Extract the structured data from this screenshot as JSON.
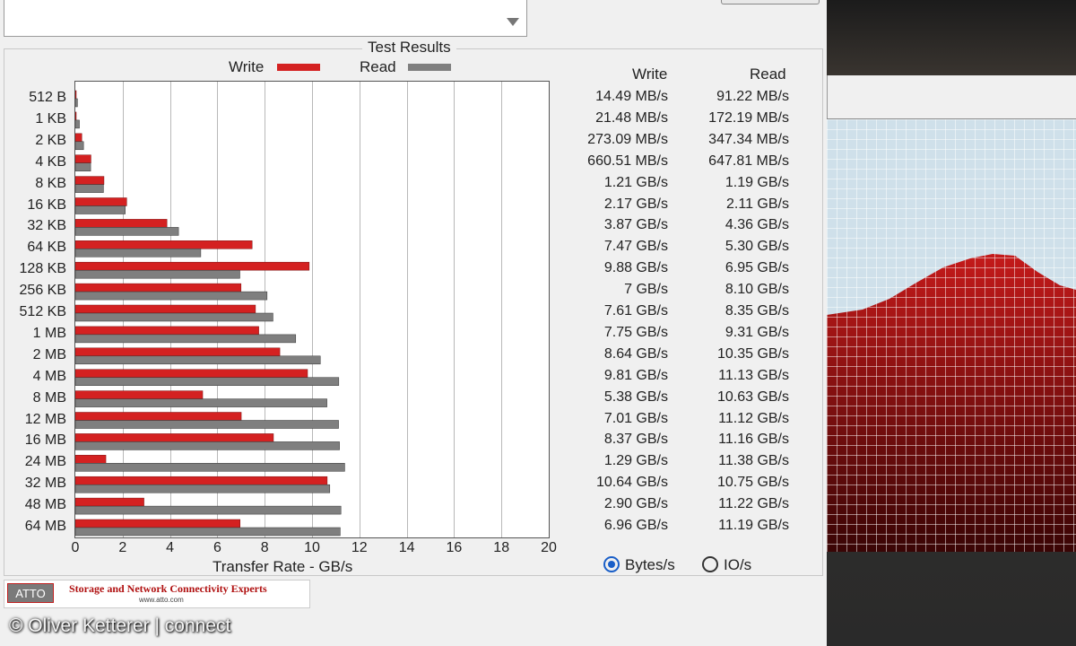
{
  "group_title": "Test Results",
  "legend": {
    "write_label": "Write",
    "read_label": "Read"
  },
  "colors": {
    "write": "#d42121",
    "read": "#7f7f7f"
  },
  "columns": {
    "write": "Write",
    "read": "Read"
  },
  "chart_data": {
    "type": "bar",
    "orientation": "horizontal",
    "title": "Test Results",
    "xlabel": "Transfer Rate - GB/s",
    "ylabel": "",
    "xlim": [
      0,
      20
    ],
    "xticks": [
      "0",
      "2",
      "4",
      "6",
      "8",
      "10",
      "12",
      "14",
      "16",
      "18",
      "20"
    ],
    "grid": true,
    "legend_position": "top",
    "categories": [
      "512 B",
      "1 KB",
      "2 KB",
      "4 KB",
      "8 KB",
      "16 KB",
      "32 KB",
      "64 KB",
      "128 KB",
      "256 KB",
      "512 KB",
      "1 MB",
      "2 MB",
      "4 MB",
      "8 MB",
      "12 MB",
      "16 MB",
      "24 MB",
      "32 MB",
      "48 MB",
      "64 MB"
    ],
    "series": [
      {
        "name": "Write",
        "values": [
          0.01449,
          0.02148,
          0.27309,
          0.66051,
          1.21,
          2.17,
          3.87,
          7.47,
          9.88,
          7.0,
          7.61,
          7.75,
          8.64,
          9.81,
          5.38,
          7.01,
          8.37,
          1.29,
          10.64,
          2.9,
          6.96
        ]
      },
      {
        "name": "Read",
        "values": [
          0.09122,
          0.17219,
          0.34734,
          0.64781,
          1.19,
          2.11,
          4.36,
          5.3,
          6.95,
          8.1,
          8.35,
          9.31,
          10.35,
          11.13,
          10.63,
          11.12,
          11.16,
          11.38,
          10.75,
          11.22,
          11.19
        ]
      }
    ],
    "write_labels": [
      "14.49 MB/s",
      "21.48 MB/s",
      "273.09 MB/s",
      "660.51 MB/s",
      "1.21 GB/s",
      "2.17 GB/s",
      "3.87 GB/s",
      "7.47 GB/s",
      "9.88 GB/s",
      "7 GB/s",
      "7.61 GB/s",
      "7.75 GB/s",
      "8.64 GB/s",
      "9.81 GB/s",
      "5.38 GB/s",
      "7.01 GB/s",
      "8.37 GB/s",
      "1.29 GB/s",
      "10.64 GB/s",
      "2.90 GB/s",
      "6.96 GB/s"
    ],
    "read_labels": [
      "91.22 MB/s",
      "172.19 MB/s",
      "347.34 MB/s",
      "647.81 MB/s",
      "1.19 GB/s",
      "2.11 GB/s",
      "4.36 GB/s",
      "5.30 GB/s",
      "6.95 GB/s",
      "8.10 GB/s",
      "8.35 GB/s",
      "9.31 GB/s",
      "10.35 GB/s",
      "11.13 GB/s",
      "10.63 GB/s",
      "11.12 GB/s",
      "11.16 GB/s",
      "11.38 GB/s",
      "10.75 GB/s",
      "11.22 GB/s",
      "11.19 GB/s"
    ]
  },
  "units": {
    "bytes_label": "Bytes/s",
    "io_label": "IO/s",
    "selected": "Bytes/s"
  },
  "logo": {
    "brand": "ATTO",
    "tagline": "Storage and Network Connectivity Experts",
    "url": "www.atto.com"
  },
  "copyright": "© Oliver Ketterer | connect"
}
